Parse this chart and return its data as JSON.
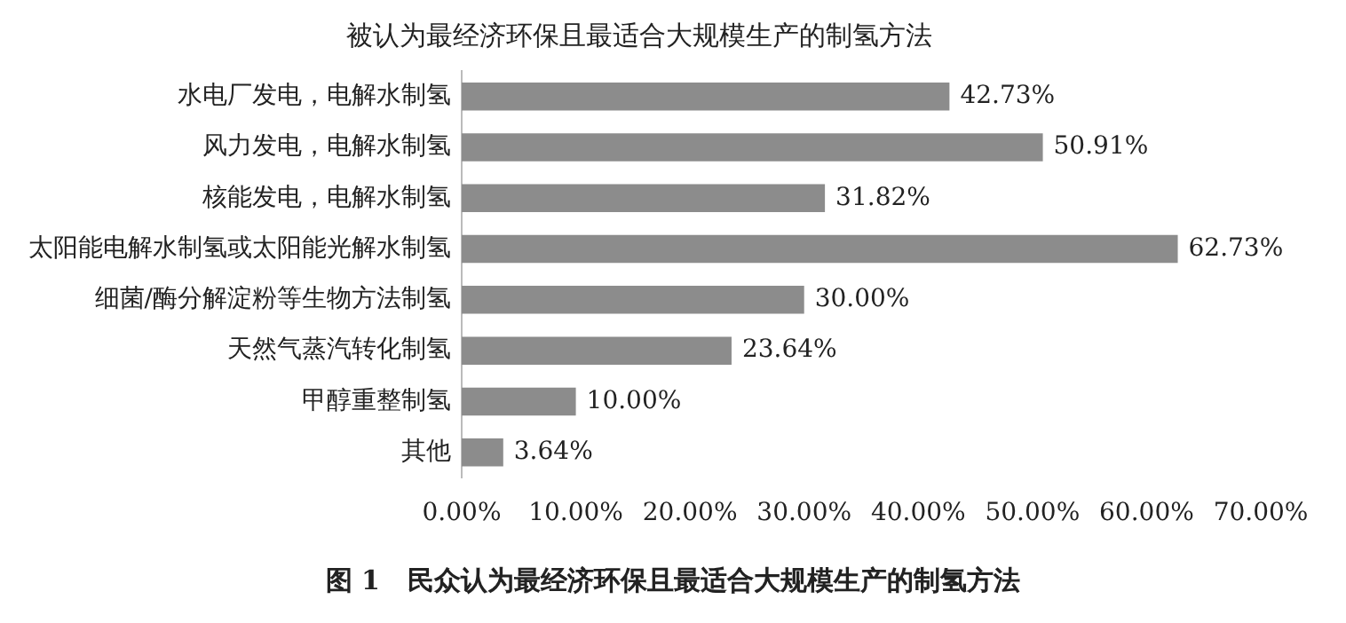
{
  "chart_data": {
    "type": "bar",
    "orientation": "horizontal",
    "title": "被认为最经济环保且最适合大规模生产的制氢方法",
    "categories": [
      "水电厂发电，电解水制氢",
      "风力发电，电解水制氢",
      "核能发电，电解水制氢",
      "太阳能电解水制氢或太阳能光解水制氢",
      "细菌/酶分解淀粉等生物方法制氢",
      "天然气蒸汽转化制氢",
      "甲醇重整制氢",
      "其他"
    ],
    "values": [
      42.73,
      50.91,
      31.82,
      62.73,
      30.0,
      23.64,
      10.0,
      3.64
    ],
    "value_labels": [
      "42.73%",
      "50.91%",
      "31.82%",
      "62.73%",
      "30.00%",
      "23.64%",
      "10.00%",
      "3.64%"
    ],
    "color": "#8c8c8c",
    "grid": false,
    "legend": false,
    "xlim": [
      0,
      70
    ],
    "xticks": [
      {
        "value": 0,
        "label": "0.00%"
      },
      {
        "value": 10,
        "label": "10.00%"
      },
      {
        "value": 20,
        "label": "20.00%"
      },
      {
        "value": 30,
        "label": "30.00%"
      },
      {
        "value": 40,
        "label": "40.00%"
      },
      {
        "value": 50,
        "label": "50.00%"
      },
      {
        "value": 60,
        "label": "60.00%"
      },
      {
        "value": 70,
        "label": "70.00%"
      }
    ],
    "annotations": [
      "图 1   民众认为最经济环保且最适合大规模生产的制氢方法"
    ]
  }
}
